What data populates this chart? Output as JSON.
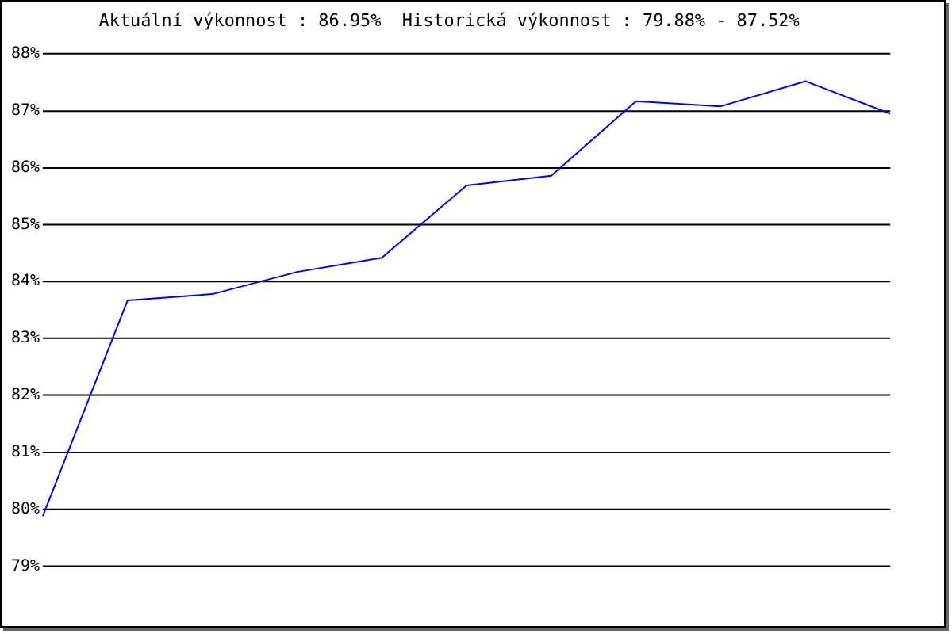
{
  "chart_data": {
    "type": "line",
    "title": "Aktuální výkonnost : 86.95%  Historická výkonnost : 79.88% - 87.52%",
    "categories": [
      null,
      null,
      null,
      null,
      null,
      null,
      null,
      null,
      null,
      null,
      null
    ],
    "series": [
      {
        "color": "#0000ff",
        "values": [
          79.88,
          83.67,
          83.78,
          84.17,
          84.42,
          85.69,
          85.86,
          87.17,
          87.08,
          87.52,
          86.95
        ]
      }
    ],
    "ylim": [
      79,
      88
    ],
    "yticks": [
      {
        "value": 79,
        "label": "79%"
      },
      {
        "value": 80,
        "label": "80%"
      },
      {
        "value": 81,
        "label": "81%"
      },
      {
        "value": 82,
        "label": "82%"
      },
      {
        "value": 83,
        "label": "83%"
      },
      {
        "value": 84,
        "label": "84%"
      },
      {
        "value": 85,
        "label": "85%"
      },
      {
        "value": 86,
        "label": "86%"
      },
      {
        "value": 87,
        "label": "87%"
      },
      {
        "value": 88,
        "label": "88%"
      }
    ],
    "grid": "y",
    "legend": false,
    "tick_labels": "y",
    "marker": "none",
    "line_style": "solid"
  }
}
